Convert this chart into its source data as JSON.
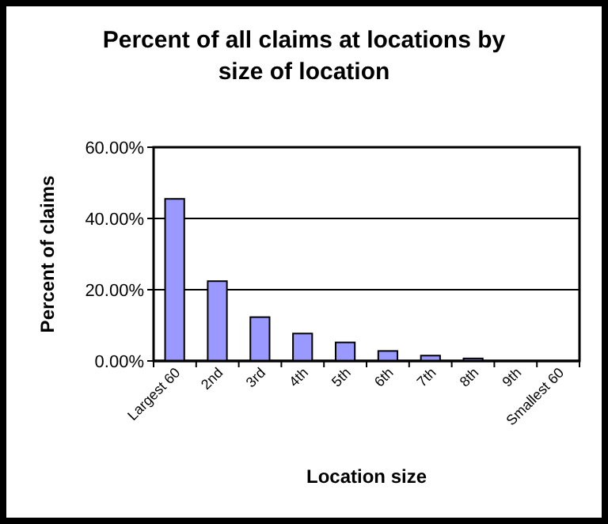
{
  "chart_data": {
    "type": "bar",
    "title": "Percent of all claims at locations by size of location",
    "xlabel": "Location size",
    "ylabel": "Percent of claims",
    "categories": [
      "Largest 60",
      "2nd",
      "3rd",
      "4th",
      "5th",
      "6th",
      "7th",
      "8th",
      "9th",
      "Smallest 60"
    ],
    "values": [
      45.5,
      22.4,
      12.3,
      7.7,
      5.2,
      2.8,
      1.5,
      0.7,
      null,
      null
    ],
    "color": "#9999ff",
    "ylim": [
      0,
      60
    ],
    "yticks": [
      {
        "value": 0,
        "label": "0.00%"
      },
      {
        "value": 20,
        "label": "20.00%"
      },
      {
        "value": 40,
        "label": "40.00%"
      },
      {
        "value": 60,
        "label": "60.00%"
      }
    ],
    "grid": "y"
  }
}
